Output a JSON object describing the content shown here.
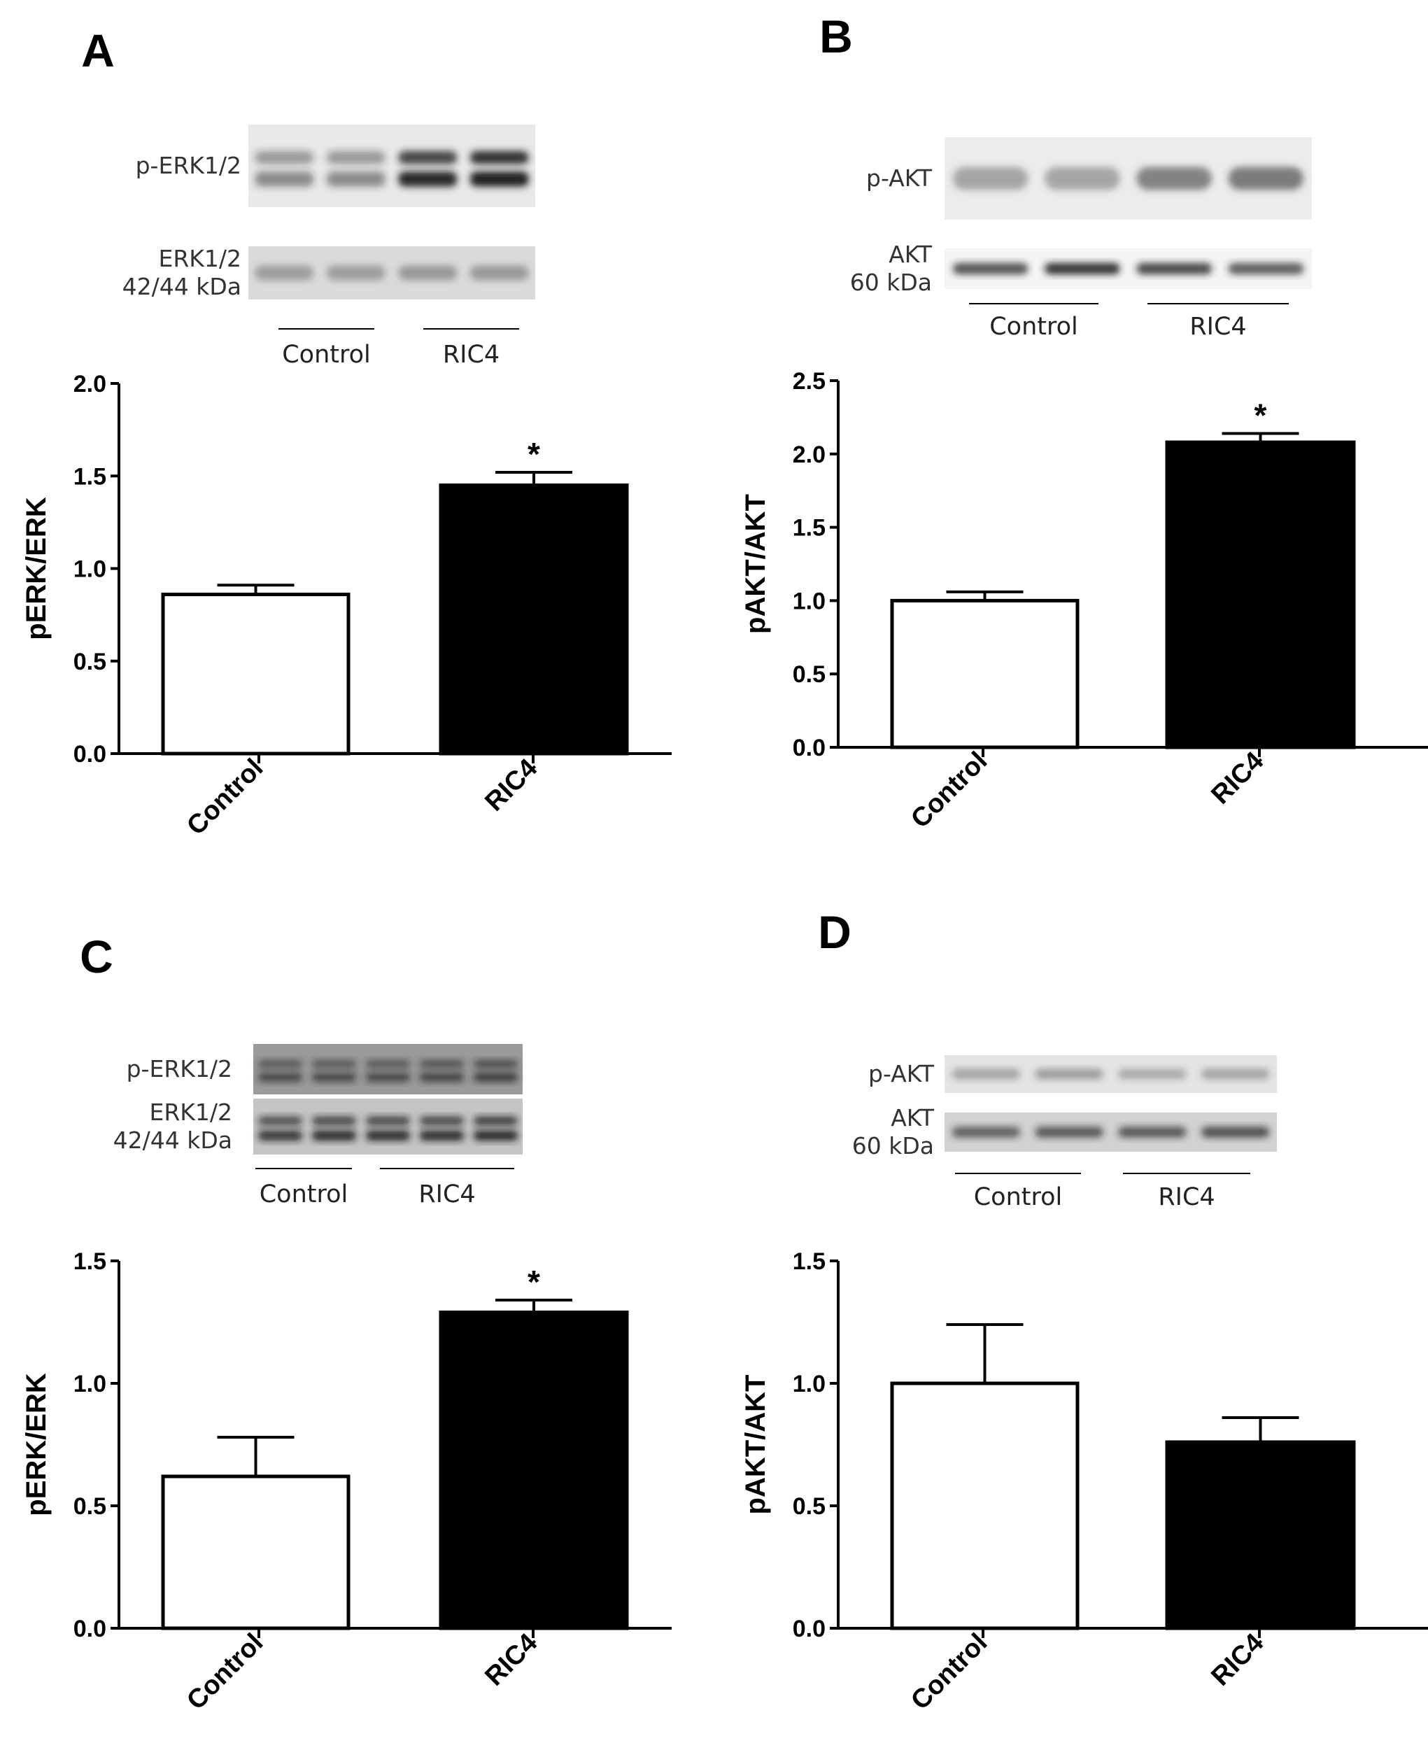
{
  "panels": [
    {
      "letter": "A",
      "blot": {
        "rows": [
          {
            "label_lines": [
              "p-ERK1/2"
            ],
            "bg": "#e8e8e8",
            "band": "#202020",
            "lanes": 4,
            "intensity": [
              0.45,
              0.45,
              0.9,
              1.0
            ],
            "double": true
          },
          {
            "label_lines": [
              "ERK1/2",
              "42/44 kDa"
            ],
            "bg": "#dadada",
            "band": "#6a6a6a",
            "lanes": 4,
            "intensity": [
              0.6,
              0.6,
              0.65,
              0.65
            ],
            "double": false
          }
        ],
        "groups": [
          "Control",
          "RIC4"
        ]
      },
      "chart": {
        "type": "bar",
        "ylabel": "pERK/ERK",
        "ylim": [
          0,
          2.0
        ],
        "yticks": [
          "0.0",
          "0.5",
          "1.0",
          "1.5",
          "2.0"
        ],
        "categories": [
          "Control",
          "RIC4"
        ],
        "values": [
          0.86,
          1.45
        ],
        "errors": [
          0.05,
          0.07
        ],
        "fills": [
          "#ffffff",
          "#000000"
        ],
        "significance": [
          "",
          "*"
        ]
      }
    },
    {
      "letter": "B",
      "blot": {
        "rows": [
          {
            "label_lines": [
              "p-AKT"
            ],
            "bg": "#ececec",
            "band": "#505050",
            "lanes": 4,
            "intensity": [
              0.5,
              0.5,
              0.75,
              0.8
            ],
            "double": false
          },
          {
            "label_lines": [
              "AKT",
              "60 kDa"
            ],
            "bg": "#f4f4f4",
            "band": "#202020",
            "lanes": 4,
            "intensity": [
              0.85,
              1.0,
              0.9,
              0.8
            ],
            "double": false
          }
        ],
        "groups": [
          "Control",
          "RIC4"
        ]
      },
      "chart": {
        "type": "bar",
        "ylabel": "pAKT/AKT",
        "ylim": [
          0,
          2.5
        ],
        "yticks": [
          "0.0",
          "0.5",
          "1.0",
          "1.5",
          "2.0",
          "2.5"
        ],
        "categories": [
          "Control",
          "RIC4"
        ],
        "values": [
          1.0,
          2.08
        ],
        "errors": [
          0.06,
          0.06
        ],
        "fills": [
          "#ffffff",
          "#000000"
        ],
        "significance": [
          "",
          "*"
        ]
      }
    },
    {
      "letter": "C",
      "blot": {
        "rows": [
          {
            "label_lines": [
              "p-ERK1/2"
            ],
            "bg": "#9a9a9a",
            "band": "#2a2a2a",
            "lanes": 5,
            "intensity": [
              0.7,
              0.7,
              0.7,
              0.75,
              0.8
            ],
            "double": true
          },
          {
            "label_lines": [
              "ERK1/2",
              "42/44 kDa"
            ],
            "bg": "#c4c4c4",
            "band": "#1a1a1a",
            "lanes": 5,
            "intensity": [
              0.8,
              0.85,
              0.85,
              0.85,
              0.9
            ],
            "double": true
          }
        ],
        "groups": [
          "Control",
          "RIC4"
        ]
      },
      "chart": {
        "type": "bar",
        "ylabel": "pERK/ERK",
        "ylim": [
          0,
          1.5
        ],
        "yticks": [
          "0.0",
          "0.5",
          "1.0",
          "1.5"
        ],
        "categories": [
          "Control",
          "RIC4"
        ],
        "values": [
          0.62,
          1.29
        ],
        "errors": [
          0.16,
          0.05
        ],
        "fills": [
          "#ffffff",
          "#000000"
        ],
        "significance": [
          "",
          "*"
        ]
      }
    },
    {
      "letter": "D",
      "blot": {
        "rows": [
          {
            "label_lines": [
              "p-AKT"
            ],
            "bg": "#e4e4e4",
            "band": "#555555",
            "lanes": 4,
            "intensity": [
              0.5,
              0.55,
              0.45,
              0.5
            ],
            "double": false
          },
          {
            "label_lines": [
              "AKT",
              "60 kDa"
            ],
            "bg": "#d2d2d2",
            "band": "#2a2a2a",
            "lanes": 4,
            "intensity": [
              0.75,
              0.8,
              0.8,
              0.85
            ],
            "double": false
          }
        ],
        "groups": [
          "Control",
          "RIC4"
        ]
      },
      "chart": {
        "type": "bar",
        "ylabel": "pAKT/AKT",
        "ylim": [
          0,
          1.5
        ],
        "yticks": [
          "0.0",
          "0.5",
          "1.0",
          "1.5"
        ],
        "categories": [
          "Control",
          "RIC4"
        ],
        "values": [
          1.0,
          0.76
        ],
        "errors": [
          0.24,
          0.1
        ],
        "fills": [
          "#ffffff",
          "#000000"
        ],
        "significance": [
          "",
          ""
        ]
      }
    }
  ],
  "chart_data": [
    {
      "type": "bar",
      "title": "A",
      "xlabel": "",
      "ylabel": "pERK/ERK",
      "ylim": [
        0,
        2.0
      ],
      "categories": [
        "Control",
        "RIC4"
      ],
      "values": [
        0.86,
        1.45
      ],
      "errors": [
        0.05,
        0.07
      ],
      "annotations": [
        "",
        "*"
      ]
    },
    {
      "type": "bar",
      "title": "B",
      "xlabel": "",
      "ylabel": "pAKT/AKT",
      "ylim": [
        0,
        2.5
      ],
      "categories": [
        "Control",
        "RIC4"
      ],
      "values": [
        1.0,
        2.08
      ],
      "errors": [
        0.06,
        0.06
      ],
      "annotations": [
        "",
        "*"
      ]
    },
    {
      "type": "bar",
      "title": "C",
      "xlabel": "",
      "ylabel": "pERK/ERK",
      "ylim": [
        0,
        1.5
      ],
      "categories": [
        "Control",
        "RIC4"
      ],
      "values": [
        0.62,
        1.29
      ],
      "errors": [
        0.16,
        0.05
      ],
      "annotations": [
        "",
        "*"
      ]
    },
    {
      "type": "bar",
      "title": "D",
      "xlabel": "",
      "ylabel": "pAKT/AKT",
      "ylim": [
        0,
        1.5
      ],
      "categories": [
        "Control",
        "RIC4"
      ],
      "values": [
        1.0,
        0.76
      ],
      "errors": [
        0.24,
        0.1
      ],
      "annotations": [
        "",
        ""
      ]
    }
  ]
}
